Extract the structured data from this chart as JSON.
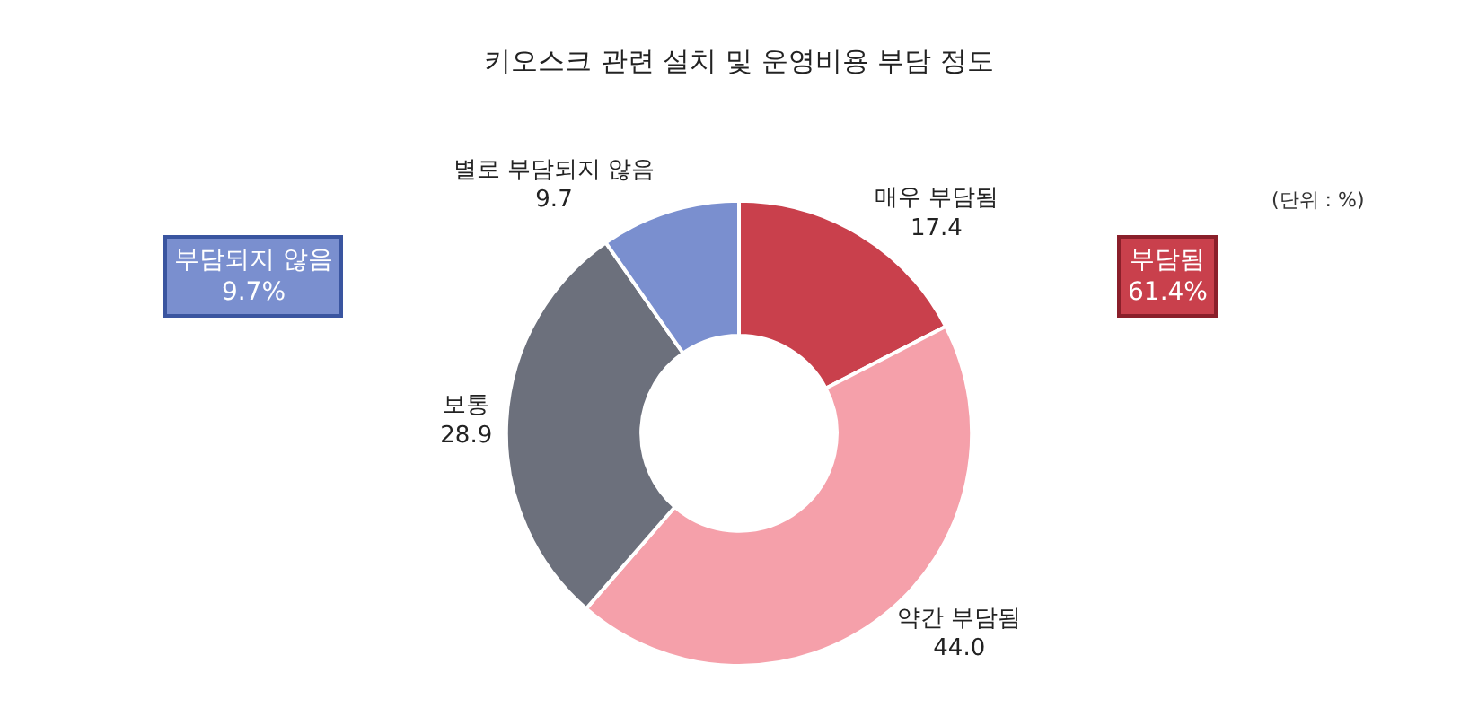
{
  "chart_data": {
    "type": "donut",
    "title": "키오스크 관련 설치 및 운영비용 부담 정도",
    "categories": [
      "매우 부담됨",
      "약간 부담됨",
      "보통",
      "별로 부담되지 않음"
    ],
    "values": [
      17.4,
      44.0,
      28.9,
      9.7
    ],
    "value_labels": [
      "17.4",
      "44.0",
      "28.9",
      "9.7"
    ],
    "colors": [
      "#c9404c",
      "#f5a0aa",
      "#6c707c",
      "#7a8fcf"
    ],
    "annotations": [
      "(단위 : %)",
      "부담되지 않음\n9.7%",
      "부담됨\n61.4%"
    ],
    "legend": false
  }
}
